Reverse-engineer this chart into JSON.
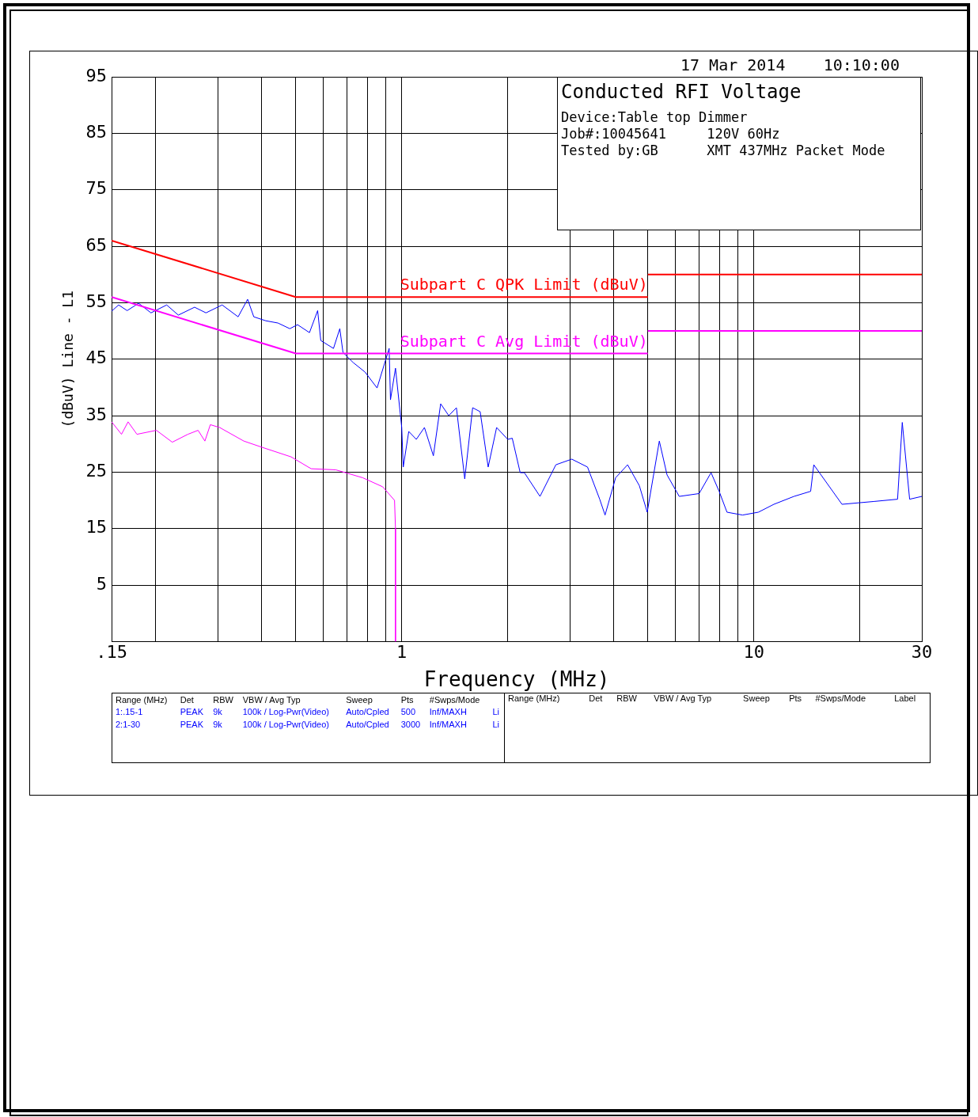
{
  "chart_data": {
    "type": "line",
    "title": "Conducted RFI Voltage",
    "xlabel": "Frequency (MHz)",
    "ylabel": "(dBuV) Line - L1",
    "log": "x",
    "grid": true,
    "legend": false,
    "xlim": [
      0.15,
      30
    ],
    "xticks": [
      {
        "value": 0.15,
        "label": ".15"
      },
      {
        "value": 0.2,
        "label": null
      },
      {
        "value": 0.3,
        "label": null
      },
      {
        "value": 0.4,
        "label": null
      },
      {
        "value": 0.5,
        "label": null
      },
      {
        "value": 0.6,
        "label": null
      },
      {
        "value": 0.7,
        "label": null
      },
      {
        "value": 0.8,
        "label": null
      },
      {
        "value": 0.9,
        "label": null
      },
      1,
      {
        "value": 2,
        "label": null
      },
      {
        "value": 3,
        "label": null
      },
      {
        "value": 4,
        "label": null
      },
      {
        "value": 5,
        "label": null
      },
      {
        "value": 6,
        "label": null
      },
      {
        "value": 7,
        "label": null
      },
      {
        "value": 8,
        "label": null
      },
      {
        "value": 9,
        "label": null
      },
      10,
      {
        "value": 20,
        "label": null
      },
      30
    ],
    "ylim": [
      -5,
      95
    ],
    "yticks": [
      5,
      15,
      25,
      35,
      45,
      55,
      65,
      75,
      85,
      95
    ],
    "series": [
      {
        "name": "Subpart C QPK Limit (dBuV)",
        "color": "#ff0000",
        "x": [
          0.15,
          0.5,
          5
        ],
        "values": [
          66,
          56,
          56
        ]
      },
      {
        "color": "#ff0000",
        "x": [
          5,
          30
        ],
        "values": [
          60,
          60
        ]
      },
      {
        "name": "Subpart C Avg Limit (dBuV)",
        "color": "#ff00ff",
        "x": [
          0.15,
          0.5,
          5
        ],
        "values": [
          56,
          46,
          46
        ]
      },
      {
        "color": "#ff00ff",
        "x": [
          5,
          30
        ],
        "values": [
          50,
          50
        ]
      },
      {
        "color": "#0000ff",
        "x": [
          0.15,
          0.157,
          0.166,
          0.179,
          0.194,
          0.215,
          0.232,
          0.258,
          0.278,
          0.309,
          0.343,
          0.365,
          0.38,
          0.411,
          0.445,
          0.481,
          0.506,
          0.547,
          0.577,
          0.589,
          0.64,
          0.667,
          0.681,
          0.728,
          0.787,
          0.851,
          0.921,
          0.929,
          0.96,
          1,
          1.01,
          1.047,
          1.1,
          1.16,
          1.23,
          1.29,
          1.36,
          1.43,
          1.51,
          1.59,
          1.67,
          1.76,
          1.86,
          2,
          2.06,
          2.17,
          2.23,
          2.47,
          2.74,
          3.04,
          3.37,
          3.65,
          3.78,
          4.05,
          4.38,
          4.73,
          4.98,
          5.39,
          5.67,
          6.14,
          6.99,
          7.56,
          7.97,
          8.39,
          9.29,
          10.3,
          11.4,
          13,
          14.5,
          14.8,
          17.8,
          21.9,
          25.6,
          26.4,
          27.7,
          30
        ],
        "values": [
          53.5,
          54.6,
          53.6,
          54.9,
          53.2,
          54.6,
          52.8,
          54.2,
          53.2,
          54.6,
          52.5,
          55.6,
          52.5,
          51.8,
          51.4,
          50.4,
          51.1,
          49.7,
          53.6,
          48.3,
          46.9,
          50.4,
          46.2,
          44.4,
          42.7,
          39.9,
          46.9,
          37.8,
          43.4,
          32.9,
          25.9,
          32.2,
          30.8,
          32.9,
          27.9,
          37.1,
          35,
          36.4,
          23.8,
          36.4,
          35.7,
          25.9,
          32.9,
          30.8,
          31,
          24.9,
          24.9,
          20.7,
          26.3,
          27.3,
          25.9,
          20.2,
          17.4,
          24,
          26.3,
          22.6,
          17.9,
          30.5,
          24.5,
          20.7,
          21.2,
          24.9,
          21.6,
          17.9,
          17.4,
          17.9,
          19.3,
          20.7,
          21.6,
          26.3,
          19.3,
          19.8,
          20.2,
          33.8,
          20.2,
          20.7
        ]
      },
      {
        "color": "#ff00ff",
        "x": [
          0.15,
          0.16,
          0.167,
          0.177,
          0.201,
          0.223,
          0.247,
          0.264,
          0.276,
          0.286,
          0.304,
          0.356,
          0.401,
          0.485,
          0.553,
          0.65,
          0.775,
          0.883,
          0.954,
          0.96,
          0.96
        ],
        "values": [
          33.9,
          31.7,
          33.9,
          31.7,
          32.4,
          30.3,
          31.7,
          32.4,
          30.5,
          33.4,
          32.9,
          30.5,
          29.4,
          27.7,
          25.6,
          25.4,
          24,
          22.4,
          20,
          15,
          -5
        ]
      }
    ],
    "annotations": [
      "17 Mar 2014",
      "10:10:00",
      "Device:Table top Dimmer",
      "Job#:10045641",
      "120V 60Hz",
      "Tested by:GB",
      "XMT 437MHz Packet Mode",
      "Range (MHz)",
      "Det",
      "RBW",
      "VBW / Avg Typ",
      "Sweep",
      "Pts",
      "#Swps/Mode",
      "1:.15-1",
      "PEAK",
      "9k",
      "100k / Log-Pwr(Video)",
      "Auto/Cpled",
      "500",
      "Inf/MAXH",
      "Li",
      "2:1-30",
      "PEAK",
      "9k",
      "100k / Log-Pwr(Video)",
      "Auto/Cpled",
      "3000",
      "Inf/MAXH",
      "Li",
      "Range (MHz)",
      "Det",
      "RBW",
      "VBW / Avg Typ",
      "Sweep",
      "Pts",
      "#Swps/Mode",
      "Label"
    ]
  }
}
